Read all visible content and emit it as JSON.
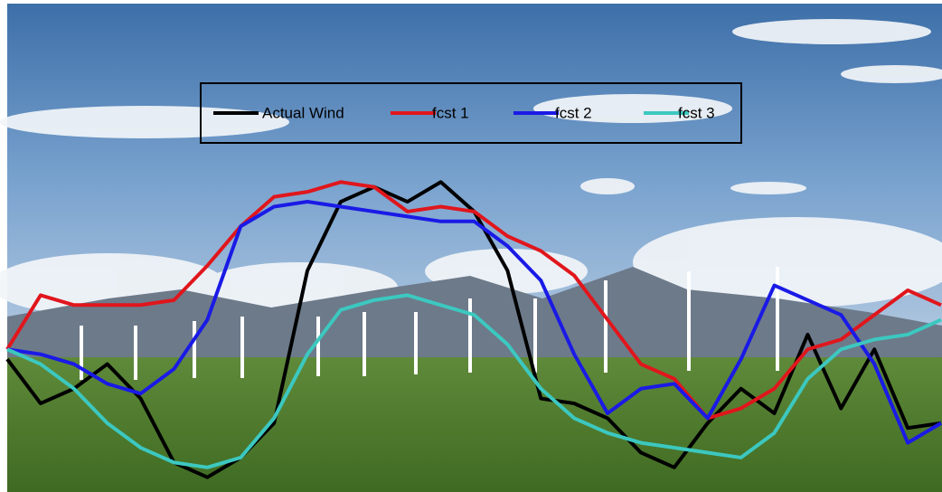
{
  "chart_data": {
    "type": "line",
    "x": [
      0,
      1,
      2,
      3,
      4,
      5,
      6,
      7,
      8,
      9,
      10,
      11,
      12,
      13,
      14,
      15,
      16,
      17,
      18,
      19,
      20,
      21,
      22,
      23,
      24,
      25,
      26,
      27,
      28
    ],
    "xlim": [
      0,
      28
    ],
    "ylim": [
      0,
      100
    ],
    "legend": "top",
    "series": [
      {
        "name": "Actual Wind",
        "color": "#000000",
        "values": [
          27,
          18,
          21,
          26,
          19,
          6,
          3,
          7,
          14,
          45,
          59,
          62,
          59,
          63,
          57,
          45,
          19,
          18,
          15,
          8,
          5,
          14,
          21,
          16,
          32,
          17,
          29,
          13,
          14
        ]
      },
      {
        "name": "fcst 1",
        "color": "#e0161c",
        "values": [
          29,
          40,
          38,
          38,
          38,
          39,
          46,
          54,
          60,
          61,
          63,
          62,
          57,
          58,
          57,
          52,
          49,
          44,
          35,
          26,
          23,
          15,
          17,
          21,
          29,
          31,
          36,
          41,
          38
        ]
      },
      {
        "name": "fcst 2",
        "color": "#1a1ae6",
        "values": [
          29,
          28,
          26,
          22,
          20,
          25,
          35,
          54,
          58,
          59,
          58,
          57,
          56,
          55,
          55,
          50,
          43,
          28,
          16,
          21,
          22,
          15,
          27,
          42,
          39,
          36,
          26,
          10,
          14
        ]
      },
      {
        "name": "fcst 3",
        "color": "#3cc8c0",
        "values": [
          29,
          26,
          21,
          14,
          9,
          6,
          5,
          7,
          15,
          28,
          37,
          39,
          40,
          38,
          36,
          30,
          21,
          15,
          12,
          10,
          9,
          8,
          7,
          12,
          23,
          29,
          31,
          32,
          35
        ]
      }
    ]
  }
}
